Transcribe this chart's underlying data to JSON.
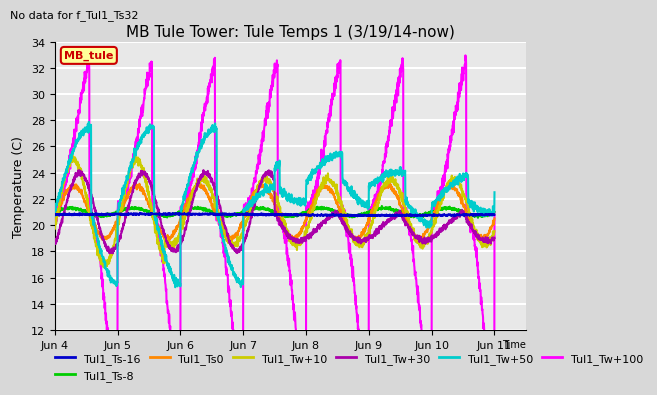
{
  "title": "MB Tule Tower: Tule Temps 1 (3/19/14-now)",
  "no_data_text": "No data for f_Tul1_Ts32",
  "ylabel": "Temperature (C)",
  "ylim": [
    12,
    34
  ],
  "yticks": [
    12,
    14,
    16,
    18,
    20,
    22,
    24,
    26,
    28,
    30,
    32,
    34
  ],
  "series": [
    {
      "label": "Tul1_Ts-16",
      "color": "#0000cc",
      "lw": 1.5
    },
    {
      "label": "Tul1_Ts-8",
      "color": "#00cc00",
      "lw": 1.5
    },
    {
      "label": "Tul1_Ts0",
      "color": "#ff8800",
      "lw": 1.5
    },
    {
      "label": "Tul1_Tw+10",
      "color": "#cccc00",
      "lw": 1.5
    },
    {
      "label": "Tul1_Tw+30",
      "color": "#aa00aa",
      "lw": 1.5
    },
    {
      "label": "Tul1_Tw+50",
      "color": "#00cccc",
      "lw": 1.5
    },
    {
      "label": "Tul1_Tw+100",
      "color": "#ff00ff",
      "lw": 1.5
    }
  ],
  "legend_box_text": "MB_tule",
  "legend_box_color": "#ffff99",
  "legend_box_edge": "#cc0000"
}
